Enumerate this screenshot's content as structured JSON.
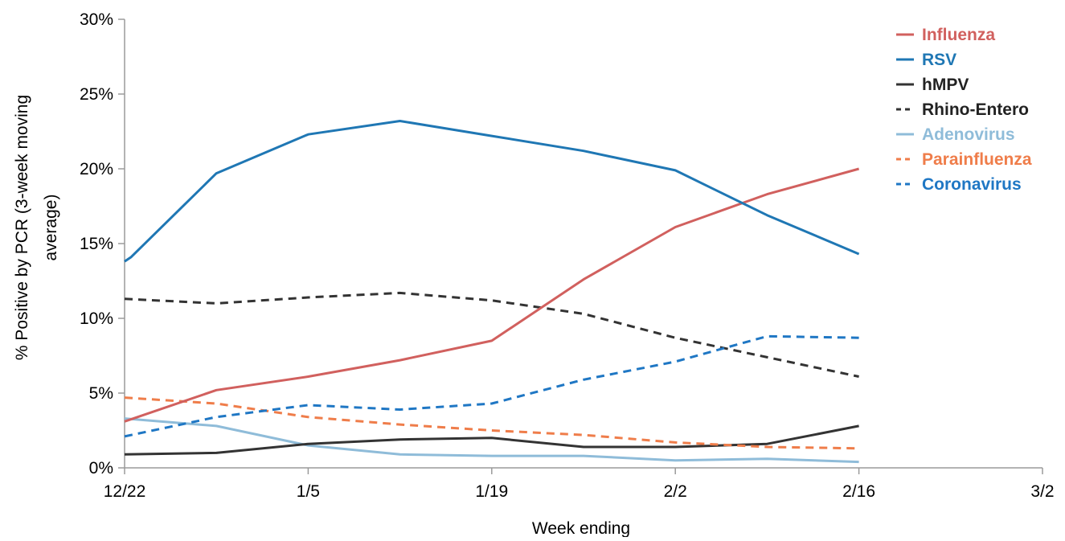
{
  "chart_data": {
    "type": "line",
    "title": "",
    "xlabel": "Week ending",
    "ylabel_lines": [
      "% Positive by PCR (3-week moving",
      "average)"
    ],
    "x_ticks": [
      {
        "label": "12/22",
        "day": 0
      },
      {
        "label": "1/5",
        "day": 14
      },
      {
        "label": "1/19",
        "day": 28
      },
      {
        "label": "2/2",
        "day": 42
      },
      {
        "label": "2/16",
        "day": 56
      },
      {
        "label": "3/2",
        "day": 70
      }
    ],
    "xlim": [
      0,
      70
    ],
    "y_ticks": [
      "0%",
      "5%",
      "10%",
      "15%",
      "20%",
      "25%",
      "30%"
    ],
    "ylim": [
      0,
      30
    ],
    "grid": false,
    "legend_position": "top-right",
    "x": [
      0,
      7,
      14,
      21,
      28,
      35,
      42,
      49,
      56
    ],
    "series": [
      {
        "name": "Influenza",
        "color": "#d1605e",
        "dashed": false,
        "x": [
          0,
          7,
          14,
          21,
          28,
          35,
          42,
          49,
          56
        ],
        "values": [
          3.1,
          5.2,
          6.1,
          7.2,
          8.5,
          12.6,
          16.1,
          18.3,
          20.0
        ]
      },
      {
        "name": "RSV",
        "color": "#1f77b4",
        "dashed": false,
        "x": [
          0,
          0.5,
          7,
          14,
          21,
          28,
          35,
          42,
          49,
          56
        ],
        "values": [
          13.8,
          14.1,
          19.7,
          22.3,
          23.2,
          22.2,
          21.2,
          19.9,
          16.9,
          14.3
        ]
      },
      {
        "name": "hMPV",
        "color": "#333333",
        "dashed": false,
        "x": [
          0,
          7,
          14,
          21,
          28,
          35,
          42,
          49,
          56
        ],
        "values": [
          0.9,
          1.0,
          1.6,
          1.9,
          2.0,
          1.4,
          1.4,
          1.6,
          2.8
        ]
      },
      {
        "name": "Rhino-Entero",
        "color": "#333333",
        "dashed": true,
        "x": [
          0,
          7,
          14,
          21,
          28,
          35,
          42,
          49,
          56
        ],
        "values": [
          11.3,
          11.0,
          11.4,
          11.7,
          11.2,
          10.3,
          8.7,
          7.4,
          6.1
        ]
      },
      {
        "name": "Adenovirus",
        "color": "#8fbcd9",
        "dashed": false,
        "x": [
          0,
          7,
          14,
          21,
          28,
          35,
          42,
          49,
          56
        ],
        "values": [
          3.3,
          2.8,
          1.5,
          0.9,
          0.8,
          0.8,
          0.5,
          0.6,
          0.4
        ]
      },
      {
        "name": "Parainfluenza",
        "color": "#ef7d4a",
        "dashed": true,
        "x": [
          0,
          7,
          14,
          21,
          28,
          35,
          42,
          49,
          56
        ],
        "values": [
          4.7,
          4.3,
          3.4,
          2.9,
          2.5,
          2.2,
          1.7,
          1.4,
          1.3
        ]
      },
      {
        "name": "Coronavirus",
        "color": "#1f77c4",
        "dashed": true,
        "x": [
          0,
          7,
          14,
          21,
          28,
          35,
          42,
          49,
          56
        ],
        "values": [
          2.1,
          3.4,
          4.2,
          3.9,
          4.3,
          5.9,
          7.1,
          8.8,
          8.7
        ]
      }
    ]
  }
}
